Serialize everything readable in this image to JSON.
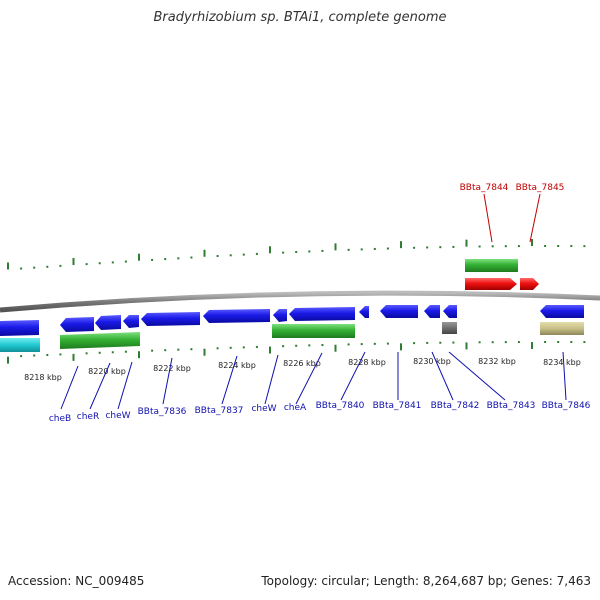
{
  "title": "Bradyrhizobium sp. BTAi1, complete genome",
  "footer": {
    "accession": "Accession: NC_009485",
    "summary": "Topology: circular; Length: 8,264,687 bp; Genes: 7,463"
  },
  "colors": {
    "backbone": "#8a8a8a",
    "tick": "#2e7d32",
    "forward_gene": "#1010e0",
    "reverse_gene": "#1010e0",
    "rna_green": "#3cb043",
    "red_gene": "#e01010",
    "teal": "#20c8d0",
    "gray": "#666666",
    "khaki": "#c8c088",
    "label_blue": "#1010b0",
    "label_red": "#c00000"
  },
  "scale": {
    "unit": "kbp",
    "ticks": [
      {
        "label": "8218 kbp",
        "value": 8218
      },
      {
        "label": "8220 kbp",
        "value": 8220
      },
      {
        "label": "8222 kbp",
        "value": 8222
      },
      {
        "label": "8224 kbp",
        "value": 8224
      },
      {
        "label": "8226 kbp",
        "value": 8226
      },
      {
        "label": "8228 kbp",
        "value": 8228
      },
      {
        "label": "8230 kbp",
        "value": 8230
      },
      {
        "label": "8232 kbp",
        "value": 8232
      },
      {
        "label": "8234 kbp",
        "value": 8234
      }
    ]
  },
  "genes_top": [
    {
      "label": "BBta_7844"
    },
    {
      "label": "BBta_7845"
    }
  ],
  "genes_bottom": [
    {
      "label": "cheB"
    },
    {
      "label": "cheR"
    },
    {
      "label": "cheW"
    },
    {
      "label": "BBta_7836"
    },
    {
      "label": "BBta_7837"
    },
    {
      "label": "cheW"
    },
    {
      "label": "cheA"
    },
    {
      "label": "BBta_7840"
    },
    {
      "label": "BBta_7841"
    },
    {
      "label": "BBta_7842"
    },
    {
      "label": "BBta_7843"
    },
    {
      "label": "BBta_7846"
    }
  ]
}
